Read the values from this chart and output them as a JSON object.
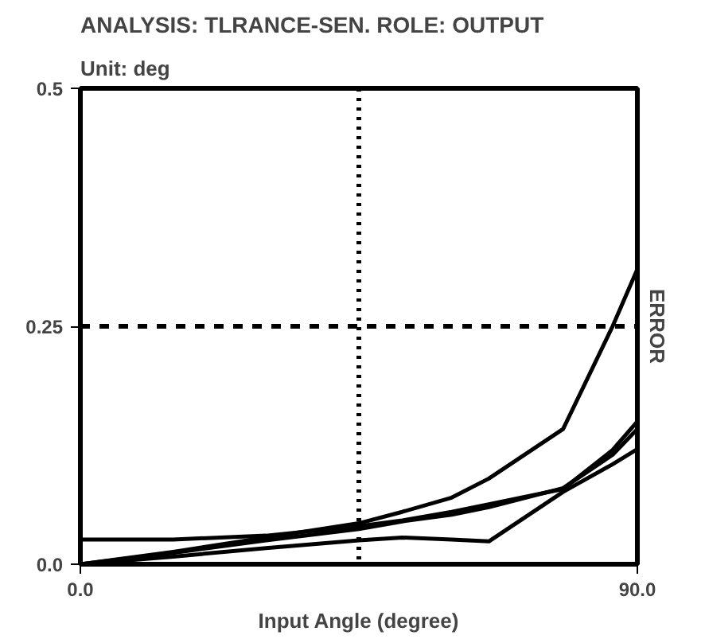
{
  "chart_data": {
    "type": "line",
    "title": "ANALYSIS: TLRANCE-SEN.  ROLE: OUTPUT",
    "subtitle": "Unit: deg",
    "xlabel": "Input Angle (degree)",
    "ylabel": "ERROR",
    "x": [
      0,
      15,
      30,
      45,
      52,
      60,
      66,
      78,
      86,
      90
    ],
    "series": [
      {
        "color": "#000000",
        "values": [
          0,
          0.013,
          0.028,
          0.043,
          0.055,
          0.07,
          0.09,
          0.142,
          0.25,
          0.31
        ]
      },
      {
        "color": "#000000",
        "values": [
          0.026,
          0.026,
          0.03,
          0.04,
          0.046,
          0.055,
          0.063,
          0.079,
          0.12,
          0.15
        ]
      },
      {
        "color": "#000000",
        "values": [
          0,
          0.012,
          0.025,
          0.037,
          0.045,
          0.052,
          0.06,
          0.08,
          0.115,
          0.142
        ]
      },
      {
        "color": "#000000",
        "values": [
          0,
          0.008,
          0.017,
          0.025,
          0.028,
          0.026,
          0.024,
          0.076,
          0.105,
          0.121
        ]
      }
    ],
    "xlim": [
      0,
      90
    ],
    "ylim": [
      0,
      0.5
    ],
    "xticks": [
      {
        "value": 0,
        "label": "0.0"
      },
      {
        "value": 90,
        "label": "90.0"
      }
    ],
    "yticks": [
      {
        "value": 0,
        "label": "0.0"
      },
      0.25,
      0.5
    ],
    "ref_lines": [
      {
        "axis": "x",
        "value": 45,
        "line_style": "dotted",
        "color": "#000000"
      },
      {
        "axis": "y",
        "value": 0.25,
        "line_style": "dashed",
        "color": "#000000"
      }
    ],
    "grid": false,
    "line_style": "solid",
    "marker": "none"
  }
}
